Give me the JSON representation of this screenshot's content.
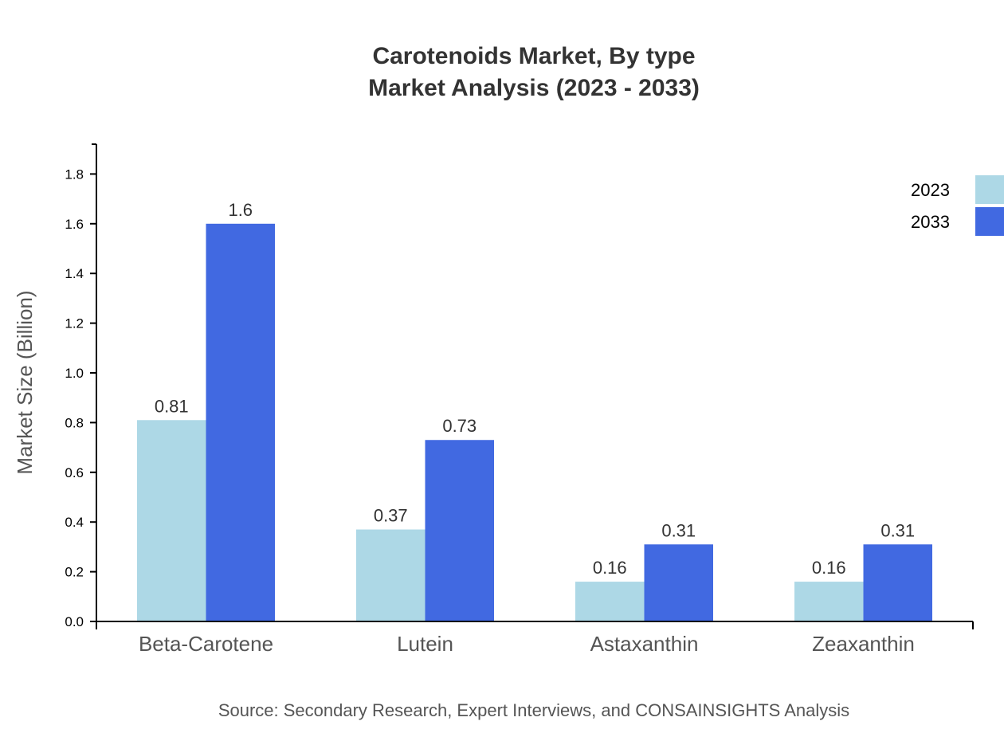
{
  "chart_data": {
    "type": "bar",
    "title": [
      "Carotenoids Market, By type",
      "Market Analysis (2023 - 2033)"
    ],
    "xlabel": "",
    "ylabel": "Market Size (Billion)",
    "categories": [
      "Beta-Carotene",
      "Lutein",
      "Astaxanthin",
      "Zeaxanthin"
    ],
    "series": [
      {
        "name": "2023",
        "color": "#add8e6",
        "values": [
          0.81,
          0.37,
          0.16,
          0.16
        ],
        "labels": [
          "0.81",
          "0.37",
          "0.16",
          "0.16"
        ]
      },
      {
        "name": "2033",
        "color": "#4169e1",
        "values": [
          1.6,
          0.73,
          0.31,
          0.31
        ],
        "labels": [
          "1.6",
          "0.73",
          "0.31",
          "0.31"
        ]
      }
    ],
    "ylim": [
      0,
      1.92
    ],
    "yticks": [
      "0.0",
      "0.2",
      "0.4",
      "0.6",
      "0.8",
      "1.0",
      "1.2",
      "1.4",
      "1.6",
      "1.8"
    ],
    "grid": false,
    "legend": "top-right",
    "source": "Source: Secondary Research, Expert Interviews, and CONSAINSIGHTS Analysis"
  }
}
